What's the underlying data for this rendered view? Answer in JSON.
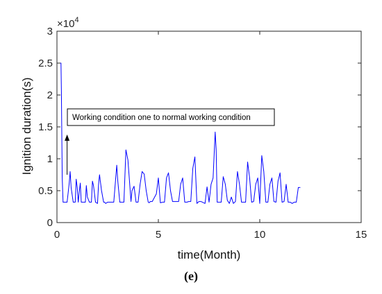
{
  "chart_data": {
    "type": "line",
    "xlabel": "time(Month)",
    "ylabel": "Ignition duration(s)",
    "y_exponent_label": "×10",
    "y_exponent_power": "4",
    "xlim": [
      0,
      15
    ],
    "ylim": [
      0,
      30000
    ],
    "x_ticks": [
      "0",
      "5",
      "10",
      "15"
    ],
    "y_ticks": [
      "0",
      "0.5",
      "1",
      "1.5",
      "2",
      "2.5",
      "3"
    ],
    "annotation": "Working condition one to normal working condition",
    "annotation_arrow": {
      "x": 0.5,
      "y_from": 7500,
      "y_to": 13800
    },
    "series_color": "#0000ff",
    "series": [
      {
        "x": [
          0.0,
          0.2,
          0.22,
          0.26,
          0.3,
          0.35,
          0.4,
          0.5,
          0.6,
          0.65,
          0.7,
          0.8,
          0.9,
          0.95,
          1.0,
          1.05,
          1.1,
          1.15,
          1.2,
          1.3,
          1.4,
          1.45,
          1.5,
          1.6,
          1.7,
          1.75,
          1.8,
          1.9,
          2.0,
          2.05,
          2.1,
          2.2,
          2.3,
          2.35,
          2.4,
          2.5,
          2.6,
          2.7,
          2.8,
          2.95,
          3.0,
          3.1,
          3.3,
          3.4,
          3.5,
          3.65,
          3.7,
          3.8,
          3.9,
          4.0,
          4.1,
          4.2,
          4.3,
          4.4,
          4.5,
          4.55,
          4.6,
          4.7,
          4.9,
          5.0,
          5.1,
          5.2,
          5.3,
          5.4,
          5.5,
          5.6,
          5.7,
          5.8,
          5.9,
          6.0,
          6.1,
          6.2,
          6.3,
          6.4,
          6.5,
          6.6,
          6.7,
          6.8,
          6.9,
          7.0,
          7.1,
          7.3,
          7.4,
          7.5,
          7.6,
          7.7,
          7.8,
          7.85,
          7.9,
          8.0,
          8.1,
          8.2,
          8.3,
          8.4,
          8.5,
          8.6,
          8.7,
          8.8,
          8.9,
          9.0,
          9.1,
          9.2,
          9.3,
          9.4,
          9.5,
          9.6,
          9.7,
          9.8,
          9.9,
          10.0,
          10.1,
          10.2,
          10.3,
          10.4,
          10.5,
          10.6,
          10.7,
          10.8,
          10.9,
          11.0,
          11.1,
          11.2,
          11.3,
          11.4,
          11.5,
          11.6,
          11.7,
          11.8,
          11.9,
          12.0
        ],
        "y": [
          25000,
          25000,
          20500,
          7000,
          3200,
          3200,
          3200,
          3200,
          6000,
          8000,
          5500,
          3200,
          3200,
          6800,
          5500,
          3200,
          4800,
          6200,
          3200,
          3200,
          3200,
          5800,
          4000,
          3200,
          3200,
          6500,
          5800,
          3200,
          3000,
          6000,
          7500,
          5000,
          3200,
          3200,
          3000,
          3200,
          3200,
          3200,
          3200,
          9000,
          6500,
          3200,
          3200,
          11400,
          9800,
          3300,
          5000,
          5700,
          3200,
          3200,
          6000,
          8000,
          7600,
          5000,
          3200,
          3100,
          3300,
          3300,
          4500,
          7000,
          3100,
          3200,
          3200,
          7000,
          7800,
          5000,
          3300,
          3300,
          3300,
          3300,
          6000,
          7000,
          3200,
          3200,
          3300,
          3300,
          8500,
          10300,
          3000,
          3300,
          3300,
          3000,
          5600,
          3200,
          6000,
          7000,
          14200,
          11500,
          3200,
          3200,
          3200,
          7200,
          6000,
          3500,
          3000,
          4000,
          3000,
          3300,
          8000,
          6000,
          3200,
          3200,
          3200,
          9500,
          7000,
          3200,
          3300,
          6000,
          7000,
          3000,
          10500,
          8000,
          3200,
          3200,
          6000,
          7000,
          3300,
          3200,
          6500,
          7800,
          3200,
          3300,
          6000,
          3200,
          3200,
          3000,
          3200,
          3200,
          5500,
          5500
        ]
      }
    ]
  },
  "panel_label": "(e)"
}
